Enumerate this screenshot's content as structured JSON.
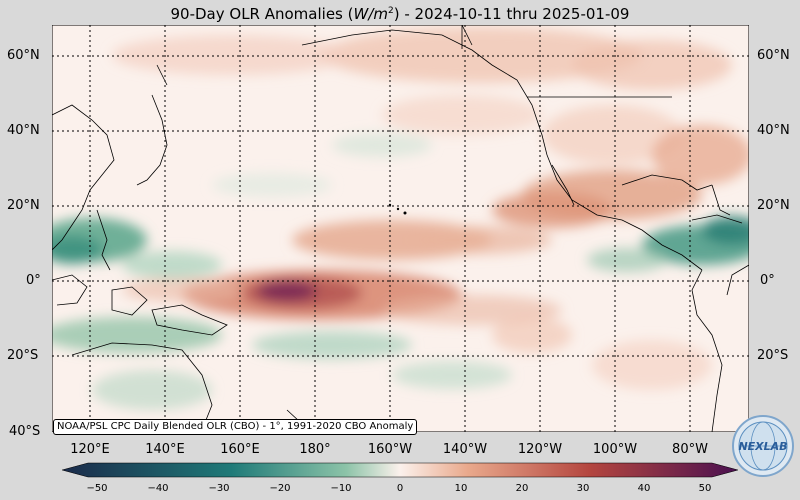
{
  "title": {
    "prefix": "90-Day OLR Anomalies (",
    "unit": "W/m",
    "unit_sup": "2",
    "suffix": ") - 2024-10-11 thru 2025-01-09"
  },
  "map": {
    "lat_labels": [
      "60°N",
      "40°N",
      "20°N",
      "0°",
      "20°S",
      "40°S"
    ],
    "lon_labels": [
      "120°E",
      "140°E",
      "160°E",
      "180°",
      "160°W",
      "140°W",
      "120°W",
      "100°W",
      "80°W"
    ],
    "credit": "NOAA/PSL CPC Daily Blended OLR (CBO) - 1°, 1991-2020 CBO Anomaly"
  },
  "colorbar": {
    "min": -50,
    "max": 50,
    "ticks": [
      "−50",
      "−40",
      "−30",
      "−20",
      "−10",
      "0",
      "10",
      "20",
      "30",
      "40",
      "50"
    ],
    "colors": {
      "neg_extreme": "#1a2a4a",
      "neg_strong": "#1f7a78",
      "neg_weak": "#8cc3a8",
      "neutral": "#fbf1ec",
      "pos_weak": "#e9a98c",
      "pos_strong": "#b4463f",
      "pos_extreme": "#4a1050"
    }
  },
  "logo": {
    "text": "NEXLAB",
    "icon": "nexlab-globe-logo"
  }
}
